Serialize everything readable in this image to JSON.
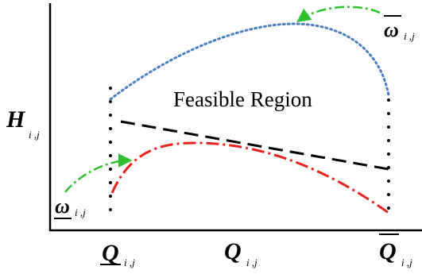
{
  "diagram": {
    "region_label": "Feasible Region",
    "y_axis": {
      "symbol": "H",
      "subscript": "i ,j"
    },
    "x_axis": {
      "lower_bound": {
        "symbol": "Q",
        "subscript": "i ,j",
        "decoration": "underline"
      },
      "variable": {
        "symbol": "Q",
        "subscript": "i ,j"
      },
      "upper_bound": {
        "symbol": "Q",
        "subscript": "i ,j",
        "decoration": "overline"
      }
    },
    "omega_lower": {
      "symbol": "ω",
      "subscript": "i ,j",
      "decoration": "underline"
    },
    "omega_upper": {
      "symbol": "ω",
      "subscript": "i ,j",
      "decoration": "overline"
    },
    "curves": [
      {
        "name": "upper-speed-curve",
        "style": "dotted",
        "color": "#4a7ebf"
      },
      {
        "name": "operating-line",
        "style": "dashed",
        "color": "#000000"
      },
      {
        "name": "lower-speed-curve",
        "style": "dash-dot",
        "color": "#e8231f"
      },
      {
        "name": "arrow-to-upper-curve",
        "style": "dash-dot",
        "color": "#2fbf2f"
      },
      {
        "name": "arrow-to-lower-curve",
        "style": "dash-dot",
        "color": "#2fbf2f"
      }
    ]
  }
}
